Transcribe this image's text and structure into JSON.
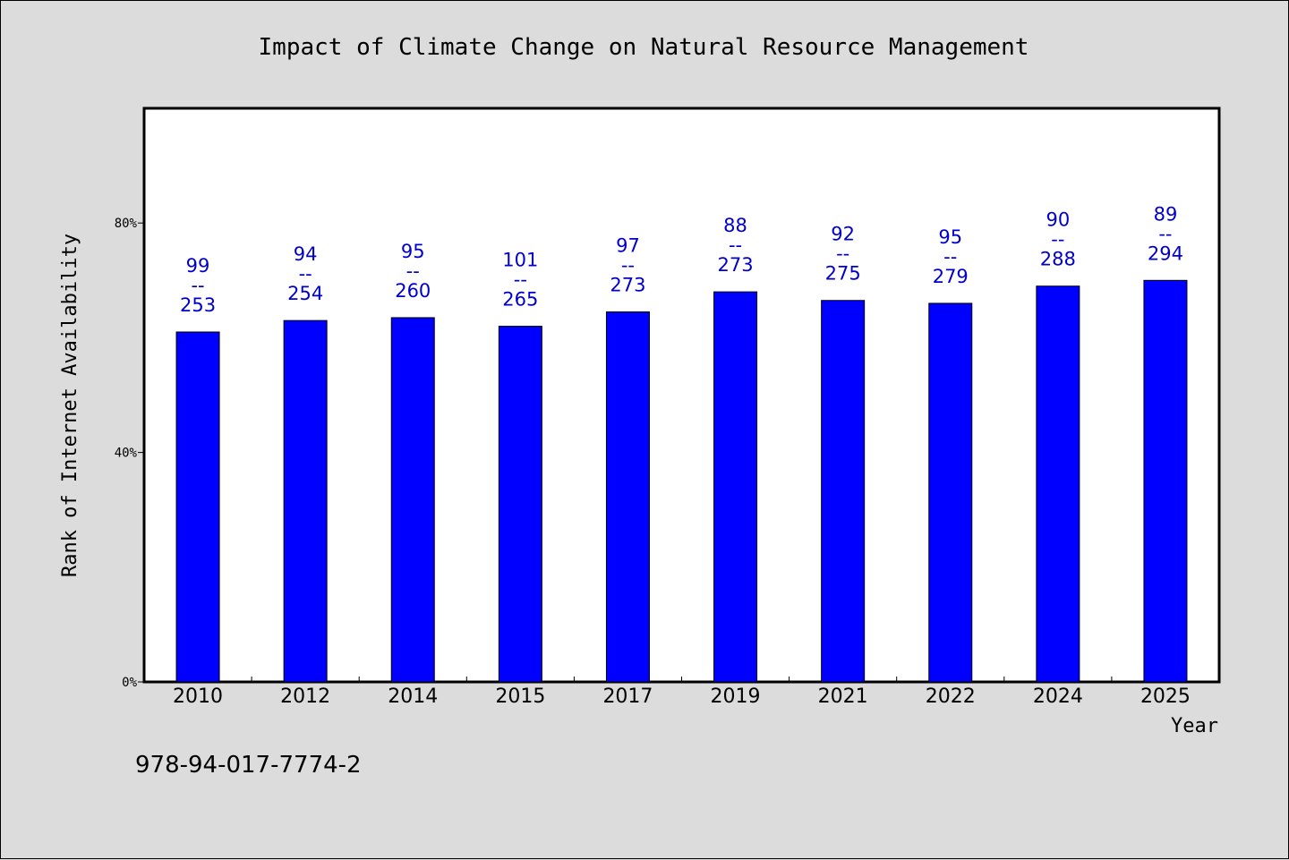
{
  "chart_data": {
    "type": "bar",
    "title": "Impact of Climate Change on Natural Resource Management",
    "xlabel": "Year",
    "ylabel": "Rank of Internet Availability",
    "categories": [
      "2010",
      "2012",
      "2014",
      "2015",
      "2017",
      "2019",
      "2021",
      "2022",
      "2024",
      "2025"
    ],
    "values": [
      61,
      63,
      63.5,
      62,
      64.5,
      68,
      66.5,
      66,
      69,
      70
    ],
    "bar_labels_top": [
      "99",
      "94",
      "95",
      "101",
      "97",
      "88",
      "92",
      "95",
      "90",
      "89"
    ],
    "bar_labels_separator": "--",
    "bar_labels_bottom": [
      "253",
      "254",
      "260",
      "265",
      "273",
      "273",
      "275",
      "279",
      "288",
      "294"
    ],
    "ylim": [
      0,
      100
    ],
    "yticks": [
      0,
      40,
      80
    ],
    "ytick_labels": [
      "0%",
      "40%",
      "80%"
    ],
    "grid": false,
    "colors": {
      "bar": "#0000ff",
      "label": "#0000cc",
      "background": "#dcdcdc",
      "plot": "#ffffff"
    }
  },
  "footer": {
    "isbn": "978-94-017-7774-2"
  }
}
